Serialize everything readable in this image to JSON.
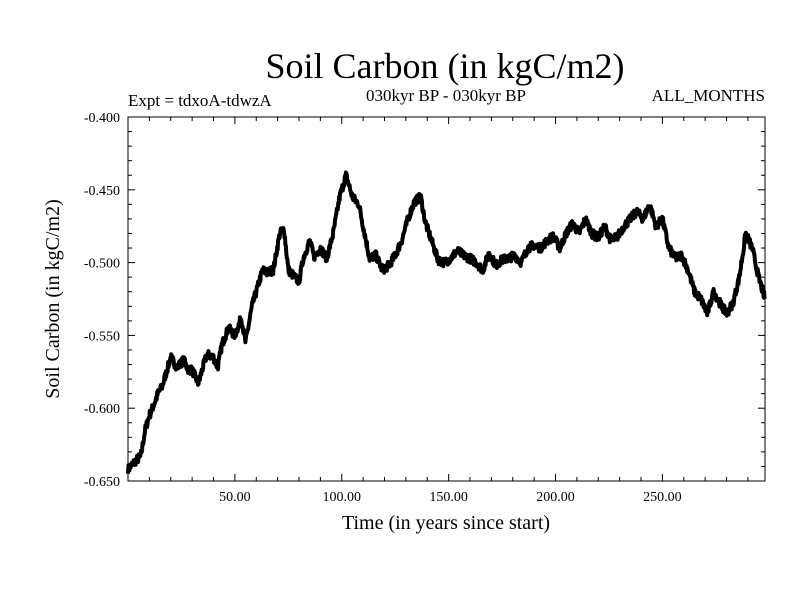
{
  "chart_data": {
    "type": "line",
    "title": "Soil Carbon (in kgC/m2)",
    "subtitle_left": "Expt = tdxoA-tdwzA",
    "subtitle_center": "030kyr BP - 030kyr BP",
    "subtitle_right": "ALL_MONTHS",
    "xlabel": "Time (in years since start)",
    "ylabel": "Soil Carbon (in kgC/m2)",
    "xlim": [
      0,
      298
    ],
    "ylim": [
      -0.65,
      -0.4
    ],
    "xticks": [
      50,
      100,
      150,
      200,
      250
    ],
    "xtick_labels": [
      "50.00",
      "100.00",
      "150.00",
      "200.00",
      "250.00"
    ],
    "yticks": [
      -0.4,
      -0.45,
      -0.5,
      -0.55,
      -0.6,
      -0.65
    ],
    "ytick_labels": [
      "-0.400",
      "-0.450",
      "-0.500",
      "-0.550",
      "-0.600",
      "-0.650"
    ],
    "series": [
      {
        "name": "Soil Carbon",
        "color": "#000000",
        "x": [
          0,
          3,
          6,
          8,
          10,
          12,
          14,
          16,
          18,
          20,
          23,
          26,
          28,
          30,
          33,
          35,
          37,
          40,
          42,
          44,
          47,
          50,
          53,
          55,
          58,
          60,
          63,
          65,
          68,
          71,
          73,
          75,
          78,
          80,
          82,
          85,
          87,
          90,
          93,
          96,
          99,
          102,
          105,
          108,
          110,
          113,
          116,
          119,
          122,
          125,
          128,
          131,
          134,
          137,
          139,
          142,
          145,
          148,
          151,
          154,
          157,
          160,
          163,
          166,
          169,
          172,
          175,
          178,
          181,
          184,
          187,
          190,
          193,
          196,
          199,
          202,
          205,
          208,
          211,
          214,
          217,
          220,
          223,
          226,
          229,
          232,
          235,
          238,
          241,
          244,
          247,
          250,
          253,
          256,
          259,
          262,
          265,
          268,
          271,
          274,
          277,
          280,
          283,
          286,
          289,
          292,
          295,
          298
        ],
        "values": [
          -0.642,
          -0.637,
          -0.633,
          -0.615,
          -0.605,
          -0.598,
          -0.59,
          -0.585,
          -0.575,
          -0.565,
          -0.572,
          -0.567,
          -0.573,
          -0.574,
          -0.583,
          -0.572,
          -0.563,
          -0.565,
          -0.572,
          -0.556,
          -0.545,
          -0.55,
          -0.538,
          -0.555,
          -0.53,
          -0.52,
          -0.505,
          -0.507,
          -0.505,
          -0.48,
          -0.477,
          -0.505,
          -0.51,
          -0.513,
          -0.497,
          -0.485,
          -0.496,
          -0.49,
          -0.497,
          -0.48,
          -0.455,
          -0.44,
          -0.455,
          -0.46,
          -0.475,
          -0.497,
          -0.495,
          -0.505,
          -0.502,
          -0.495,
          -0.485,
          -0.47,
          -0.458,
          -0.455,
          -0.472,
          -0.485,
          -0.498,
          -0.5,
          -0.497,
          -0.492,
          -0.495,
          -0.497,
          -0.5,
          -0.505,
          -0.493,
          -0.502,
          -0.498,
          -0.497,
          -0.495,
          -0.5,
          -0.49,
          -0.488,
          -0.49,
          -0.485,
          -0.482,
          -0.49,
          -0.48,
          -0.473,
          -0.48,
          -0.47,
          -0.48,
          -0.483,
          -0.475,
          -0.485,
          -0.482,
          -0.475,
          -0.47,
          -0.465,
          -0.47,
          -0.46,
          -0.475,
          -0.47,
          -0.49,
          -0.497,
          -0.495,
          -0.505,
          -0.52,
          -0.525,
          -0.535,
          -0.52,
          -0.528,
          -0.535,
          -0.528,
          -0.51,
          -0.48,
          -0.49,
          -0.51,
          -0.525
        ]
      }
    ]
  }
}
